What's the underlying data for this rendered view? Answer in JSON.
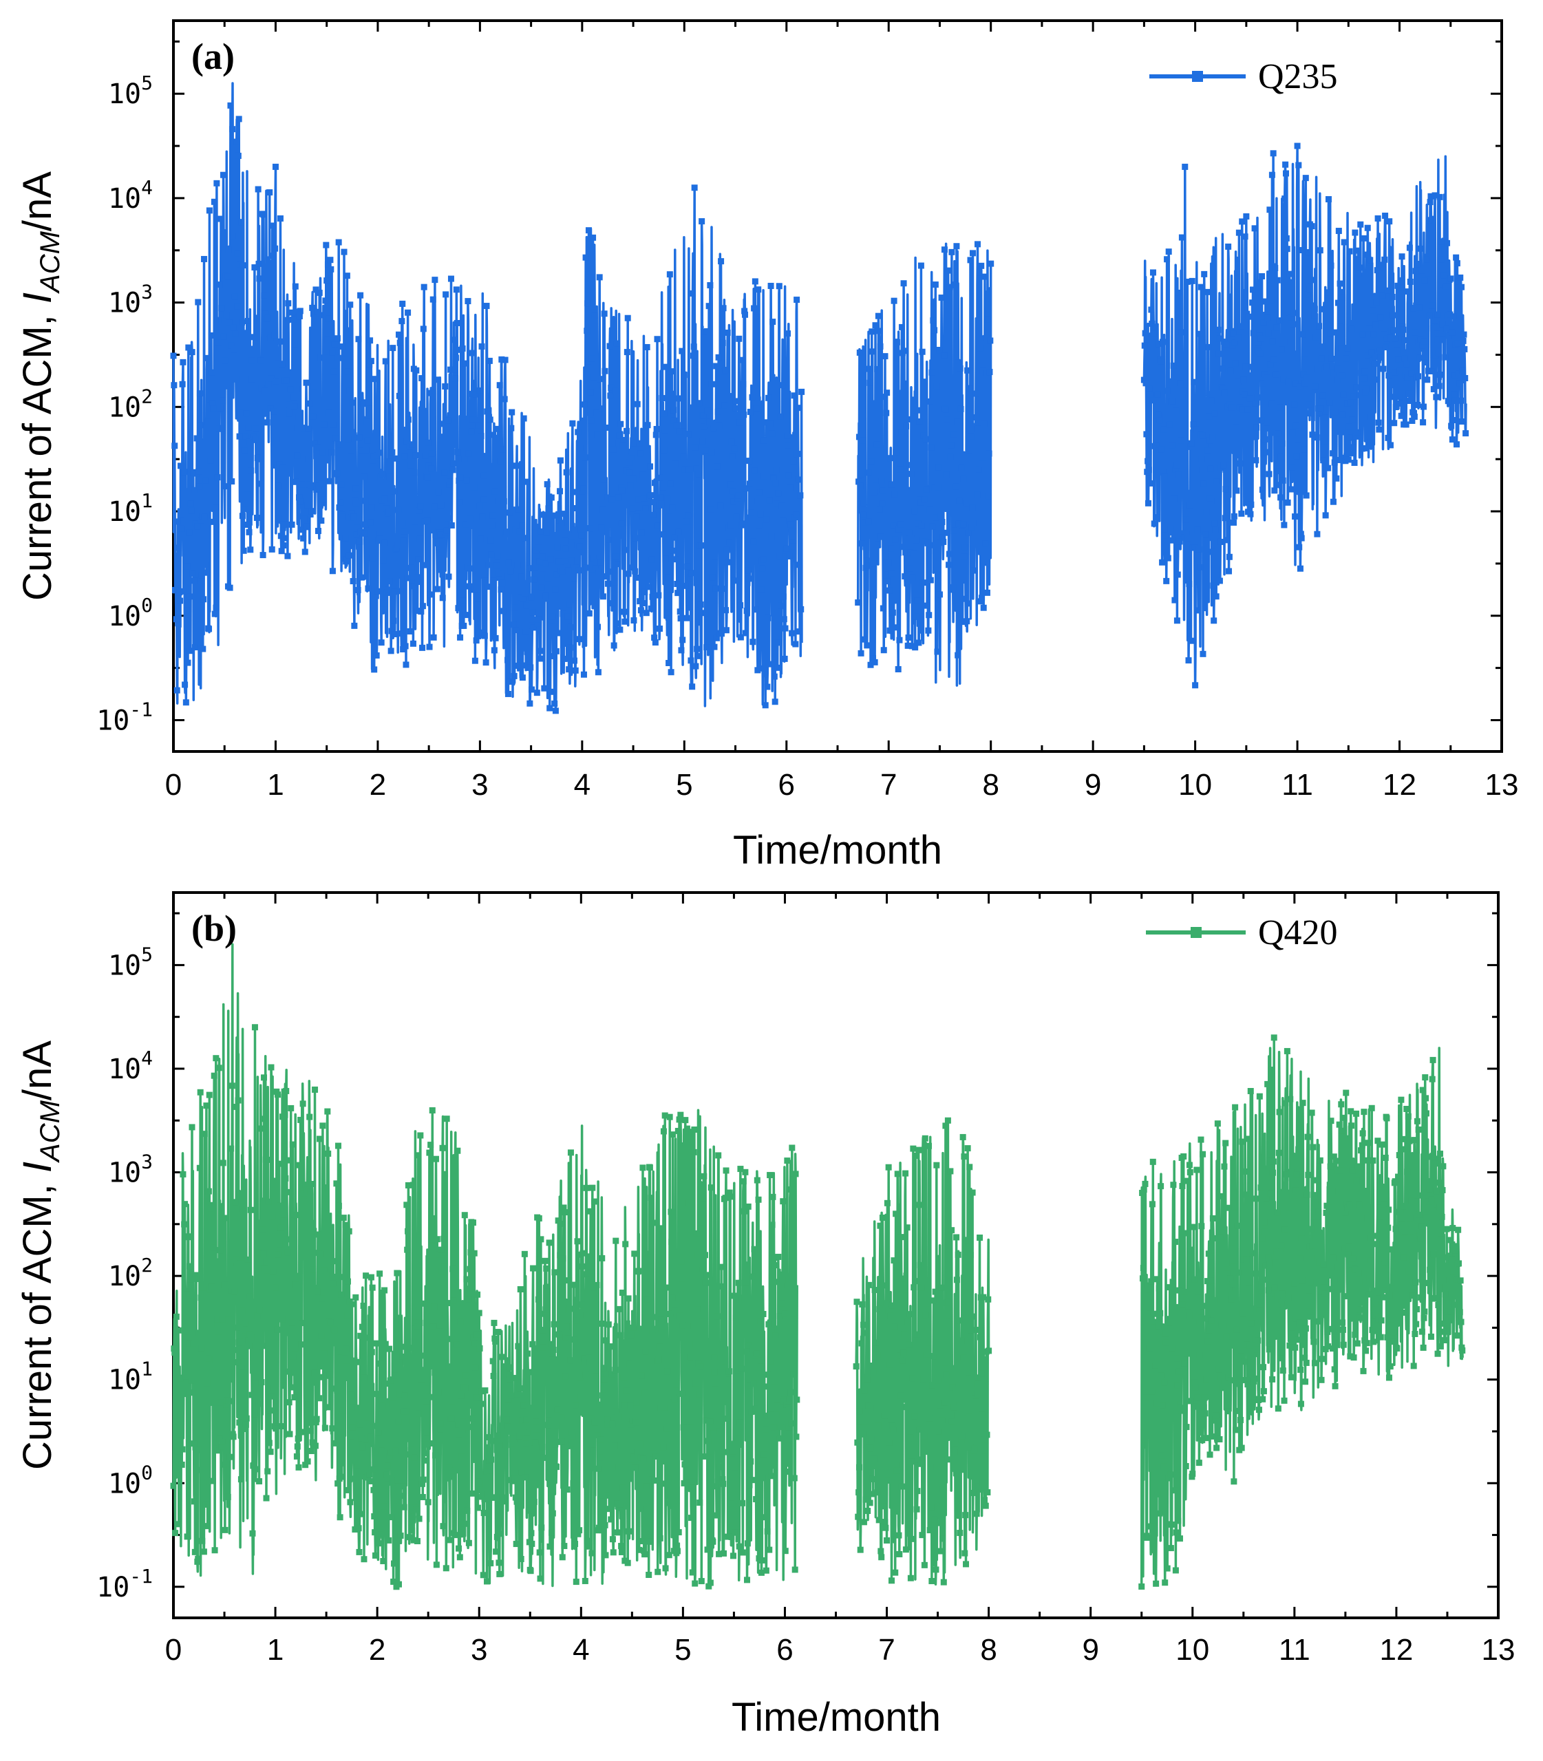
{
  "chart_data": [
    {
      "type": "line",
      "panel_label": "(a)",
      "series": [
        {
          "name": "Q235",
          "color": "#1f6fe0"
        }
      ],
      "xlabel": "Time/month",
      "ylabel_prefix": "Current of ACM, ",
      "ylabel_symbol": "I",
      "ylabel_subscript": "ACM",
      "ylabel_suffix": "/nA",
      "xlim": [
        0,
        13
      ],
      "ylim_log10": [
        -1.3,
        5.7
      ],
      "xticks": [
        "0",
        "1",
        "2",
        "3",
        "4",
        "5",
        "6",
        "7",
        "8",
        "9",
        "10",
        "11",
        "12",
        "13"
      ],
      "yticks": [
        {
          "base": "10",
          "exp": "-1"
        },
        {
          "base": "10",
          "exp": "0"
        },
        {
          "base": "10",
          "exp": "1"
        },
        {
          "base": "10",
          "exp": "2"
        },
        {
          "base": "10",
          "exp": "3"
        },
        {
          "base": "10",
          "exp": "4"
        },
        {
          "base": "10",
          "exp": "5"
        }
      ],
      "segments": [
        [
          0.0,
          6.15
        ],
        [
          6.7,
          8.0
        ],
        [
          9.5,
          12.65
        ]
      ],
      "envelope": [
        [
          0.0,
          -1.0,
          2.5
        ],
        [
          0.2,
          -1.0,
          2.7
        ],
        [
          0.35,
          -0.5,
          4.2
        ],
        [
          0.58,
          0.0,
          5.1
        ],
        [
          0.75,
          0.5,
          4.3
        ],
        [
          1.0,
          0.5,
          4.0
        ],
        [
          1.3,
          0.5,
          3.0
        ],
        [
          1.5,
          0.5,
          3.9
        ],
        [
          2.0,
          -0.7,
          2.8
        ],
        [
          2.5,
          -0.3,
          3.3
        ],
        [
          3.0,
          -0.5,
          3.2
        ],
        [
          3.4,
          -1.0,
          2.0
        ],
        [
          3.8,
          -1.0,
          1.5
        ],
        [
          4.05,
          -0.7,
          3.9
        ],
        [
          4.3,
          -0.5,
          3.0
        ],
        [
          4.7,
          -0.3,
          3.0
        ],
        [
          5.1,
          -1.0,
          4.1
        ],
        [
          5.5,
          -0.5,
          3.2
        ],
        [
          5.85,
          -1.0,
          3.4
        ],
        [
          6.15,
          -0.5,
          3.0
        ],
        [
          6.7,
          -0.5,
          2.7
        ],
        [
          7.0,
          -0.5,
          3.0
        ],
        [
          7.3,
          -0.7,
          3.5
        ],
        [
          7.7,
          -0.7,
          3.6
        ],
        [
          8.0,
          0.0,
          3.6
        ],
        [
          9.5,
          0.9,
          3.4
        ],
        [
          9.8,
          0.0,
          3.7
        ],
        [
          10.0,
          -0.7,
          3.6
        ],
        [
          10.4,
          0.5,
          3.9
        ],
        [
          10.8,
          1.0,
          4.5
        ],
        [
          11.0,
          0.3,
          4.5
        ],
        [
          11.3,
          1.0,
          4.1
        ],
        [
          11.7,
          1.4,
          3.8
        ],
        [
          12.0,
          1.7,
          4.0
        ],
        [
          12.4,
          1.8,
          4.4
        ],
        [
          12.65,
          1.5,
          3.0
        ]
      ],
      "peaks": [
        [
          0.58,
          5.1
        ],
        [
          1.0,
          4.3
        ],
        [
          5.1,
          4.1
        ],
        [
          9.9,
          4.3
        ],
        [
          11.0,
          4.5
        ],
        [
          12.45,
          4.4
        ]
      ]
    },
    {
      "type": "line",
      "panel_label": "(b)",
      "series": [
        {
          "name": "Q420",
          "color": "#3aad6b"
        }
      ],
      "xlabel": "Time/month",
      "ylabel_prefix": "Current of ACM, ",
      "ylabel_symbol": "I",
      "ylabel_subscript": "ACM",
      "ylabel_suffix": "/nA",
      "xlim": [
        0,
        13
      ],
      "ylim_log10": [
        -1.3,
        5.7
      ],
      "xticks": [
        "0",
        "1",
        "2",
        "3",
        "4",
        "5",
        "6",
        "7",
        "8",
        "9",
        "10",
        "11",
        "12",
        "13"
      ],
      "yticks": [
        {
          "base": "10",
          "exp": "-1"
        },
        {
          "base": "10",
          "exp": "0"
        },
        {
          "base": "10",
          "exp": "1"
        },
        {
          "base": "10",
          "exp": "2"
        },
        {
          "base": "10",
          "exp": "3"
        },
        {
          "base": "10",
          "exp": "4"
        },
        {
          "base": "10",
          "exp": "5"
        }
      ],
      "segments": [
        [
          0.0,
          6.12
        ],
        [
          6.7,
          8.0
        ],
        [
          9.5,
          12.65
        ]
      ],
      "envelope": [
        [
          0.0,
          -1.0,
          3.0
        ],
        [
          0.3,
          -1.0,
          3.9
        ],
        [
          0.58,
          -0.5,
          5.2
        ],
        [
          0.8,
          -1.0,
          4.4
        ],
        [
          1.1,
          0.0,
          4.1
        ],
        [
          1.5,
          0.0,
          3.8
        ],
        [
          1.9,
          -1.0,
          2.0
        ],
        [
          2.2,
          -1.0,
          2.1
        ],
        [
          2.4,
          -0.7,
          3.7
        ],
        [
          2.8,
          -1.0,
          3.5
        ],
        [
          3.1,
          -1.0,
          1.5
        ],
        [
          3.5,
          -1.0,
          2.5
        ],
        [
          4.0,
          -1.0,
          3.5
        ],
        [
          4.3,
          -1.0,
          2.5
        ],
        [
          4.8,
          -1.0,
          3.6
        ],
        [
          5.15,
          -1.0,
          3.6
        ],
        [
          5.5,
          -1.0,
          3.1
        ],
        [
          6.12,
          -1.0,
          3.3
        ],
        [
          6.7,
          -0.7,
          2.1
        ],
        [
          7.0,
          -1.0,
          3.1
        ],
        [
          7.4,
          -1.0,
          3.5
        ],
        [
          7.7,
          -1.0,
          3.5
        ],
        [
          8.0,
          -0.5,
          3.2
        ],
        [
          9.5,
          -1.0,
          3.0
        ],
        [
          9.8,
          -1.0,
          3.3
        ],
        [
          10.1,
          0.0,
          3.4
        ],
        [
          10.5,
          0.0,
          3.8
        ],
        [
          10.8,
          0.7,
          4.3
        ],
        [
          11.1,
          0.7,
          4.0
        ],
        [
          11.5,
          1.0,
          3.8
        ],
        [
          12.0,
          1.0,
          3.7
        ],
        [
          12.4,
          1.2,
          4.2
        ],
        [
          12.65,
          1.0,
          2.2
        ]
      ],
      "peaks": [
        [
          0.58,
          5.2
        ],
        [
          0.8,
          4.4
        ],
        [
          5.15,
          3.6
        ],
        [
          7.6,
          3.5
        ],
        [
          10.8,
          4.3
        ],
        [
          12.42,
          4.2
        ]
      ]
    }
  ]
}
